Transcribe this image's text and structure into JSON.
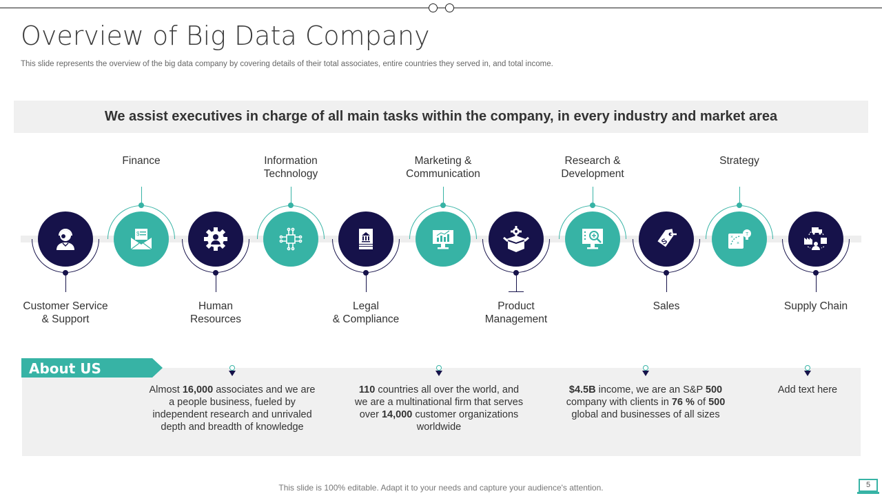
{
  "header": {
    "title": "Overview of Big Data Company",
    "subtitle": "This slide represents the overview of the big data company by covering details of their total associates, entire countries they served in, and total income."
  },
  "banner": {
    "text": "We assist executives in charge of all main tasks within  the company, in every industry and market area"
  },
  "colors": {
    "dark": "#16124a",
    "teal": "#37b3a5",
    "panel": "#f0f0f0"
  },
  "departments": [
    {
      "label": "Customer Service\n& Support",
      "line1": "Customer Service",
      "line2": "& Support",
      "icon": "customer-support-icon",
      "style": "dark",
      "label_pos": "below"
    },
    {
      "label": "Finance",
      "line1": "Finance",
      "line2": "",
      "icon": "invoice-envelope-icon",
      "style": "teal",
      "label_pos": "above"
    },
    {
      "label": "Human Resources",
      "line1": "Human",
      "line2": "Resources",
      "icon": "gear-person-icon",
      "style": "dark",
      "label_pos": "below"
    },
    {
      "label": "Information Technology",
      "line1": "Information",
      "line2": "Technology",
      "icon": "circuit-chip-icon",
      "style": "teal",
      "label_pos": "above"
    },
    {
      "label": "Legal & Compliance",
      "line1": "Legal",
      "line2": "& Compliance",
      "icon": "legal-document-icon",
      "style": "dark",
      "label_pos": "below"
    },
    {
      "label": "Marketing & Communication",
      "line1": "Marketing &",
      "line2": "Communication",
      "icon": "monitor-chart-icon",
      "style": "teal",
      "label_pos": "above"
    },
    {
      "label": "Product Management",
      "line1": "Product",
      "line2": "Management",
      "icon": "box-gear-icon",
      "style": "dark",
      "label_pos": "below"
    },
    {
      "label": "Research & Development",
      "line1": "Research &",
      "line2": "Development",
      "icon": "monitor-gear-search-icon",
      "style": "teal",
      "label_pos": "above"
    },
    {
      "label": "Sales",
      "line1": "Sales",
      "line2": "",
      "icon": "price-tag-icon",
      "style": "dark",
      "label_pos": "below"
    },
    {
      "label": "Strategy",
      "line1": "Strategy",
      "line2": "",
      "icon": "strategy-board-icon",
      "style": "teal",
      "label_pos": "above"
    },
    {
      "label": "Supply Chain",
      "line1": "Supply Chain",
      "line2": "",
      "icon": "supply-chain-icon",
      "style": "dark",
      "label_pos": "below"
    }
  ],
  "about": {
    "heading": "About US",
    "items": [
      {
        "parts": [
          [
            "",
            "Almost "
          ],
          [
            "b",
            "16,000"
          ],
          [
            "",
            " associates and we are a people business, fueled by independent research and unrivaled depth and breadth of knowledge"
          ]
        ]
      },
      {
        "parts": [
          [
            "b",
            "110"
          ],
          [
            "",
            " countries all over the world, and we are a multinational firm that serves over "
          ],
          [
            "b",
            "14,000"
          ],
          [
            "",
            " customer organizations worldwide"
          ]
        ]
      },
      {
        "parts": [
          [
            "b",
            "$4.5B"
          ],
          [
            "",
            " income, we are an S&P "
          ],
          [
            "b",
            "500"
          ],
          [
            "",
            " company with clients in "
          ],
          [
            "b",
            "76 %"
          ],
          [
            "",
            " of "
          ],
          [
            "b",
            "500"
          ],
          [
            "",
            " global and businesses of all sizes"
          ]
        ]
      },
      {
        "parts": [
          [
            "",
            "Add text here"
          ]
        ]
      }
    ]
  },
  "footer": {
    "note": "This slide is 100% editable. Adapt it to your needs and capture your audience's attention.",
    "page_number": "5"
  }
}
